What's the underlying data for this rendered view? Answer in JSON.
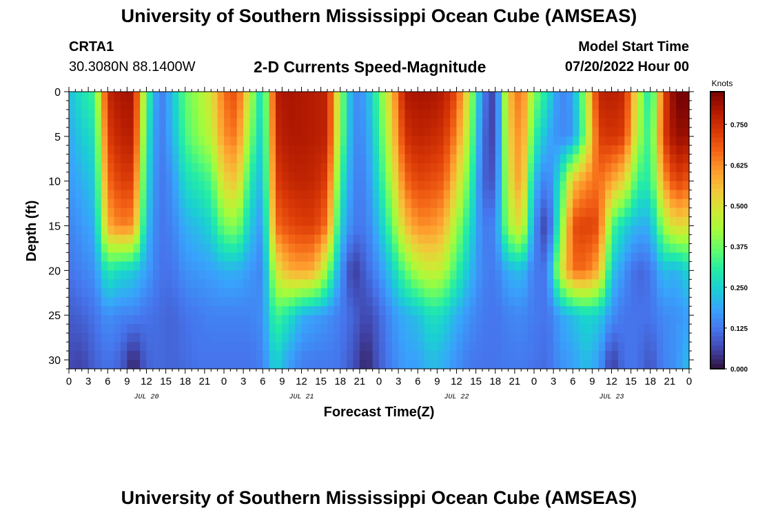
{
  "header": {
    "title": "University of Southern Mississippi Ocean Cube (AMSEAS)",
    "station": "CRTA1",
    "coordinates": "30.3080N  88.1400W",
    "subtitle": "2-D Currents Speed-Magnitude",
    "model_start_label": "Model Start Time",
    "model_start_value": "07/20/2022 Hour 00"
  },
  "footer": {
    "title": "University of Southern Mississippi Ocean Cube (AMSEAS)"
  },
  "chart_data": {
    "type": "heatmap",
    "title": "2-D Currents Speed-Magnitude",
    "xlabel": "Forecast Time(Z)",
    "ylabel": "Depth (ft)",
    "x_range_hours": [
      0,
      96
    ],
    "y_range_ft": [
      0,
      31
    ],
    "y_inverted": true,
    "x_tick_labels": [
      "0",
      "3",
      "6",
      "9",
      "12",
      "15",
      "18",
      "21",
      "0",
      "3",
      "6",
      "9",
      "12",
      "15",
      "18",
      "21",
      "0",
      "3",
      "6",
      "9",
      "12",
      "15",
      "18",
      "21",
      "0",
      "3",
      "6",
      "9",
      "12",
      "15",
      "18",
      "21",
      "0"
    ],
    "x_tick_hours": [
      0,
      3,
      6,
      9,
      12,
      15,
      18,
      21,
      24,
      27,
      30,
      33,
      36,
      39,
      42,
      45,
      48,
      51,
      54,
      57,
      60,
      63,
      66,
      69,
      72,
      75,
      78,
      81,
      84,
      87,
      90,
      93,
      96
    ],
    "date_labels": [
      {
        "text": "JUL 20",
        "hour": 12
      },
      {
        "text": "JUL 21",
        "hour": 36
      },
      {
        "text": "JUL 22",
        "hour": 60
      },
      {
        "text": "JUL 23",
        "hour": 84
      }
    ],
    "y_ticks": [
      0,
      5,
      10,
      15,
      20,
      25,
      30
    ],
    "colorbar": {
      "label": "Knots",
      "min": 0.0,
      "max": 0.85,
      "ticks": [
        "0.000",
        "0.125",
        "0.250",
        "0.375",
        "0.500",
        "0.625",
        "0.750"
      ],
      "tick_values": [
        0.0,
        0.125,
        0.25,
        0.375,
        0.5,
        0.625,
        0.75
      ],
      "colors": [
        "#30123b",
        "#4145ab",
        "#4675ed",
        "#39a2fc",
        "#1bcfd4",
        "#24eca6",
        "#61fc6c",
        "#a4fc3b",
        "#d1e834",
        "#f3c63a",
        "#fe9b2d",
        "#f36315",
        "#d93806",
        "#b11901",
        "#7a0403"
      ]
    },
    "speed_field_knots": {
      "depth_rows_ft": [
        0,
        5,
        10,
        15,
        20,
        25,
        30
      ],
      "column_hours": [
        0,
        2,
        4,
        6,
        8,
        10,
        12,
        14,
        16,
        18,
        20,
        22,
        24,
        26,
        28,
        30,
        32,
        34,
        36,
        38,
        40,
        42,
        44,
        46,
        48,
        50,
        52,
        54,
        56,
        58,
        60,
        62,
        64,
        66,
        68,
        70,
        72,
        74,
        76,
        78,
        80,
        82,
        84,
        86,
        88,
        90,
        92,
        94,
        96
      ],
      "rows": [
        [
          0.22,
          0.28,
          0.33,
          0.76,
          0.8,
          0.8,
          0.35,
          0.12,
          0.22,
          0.37,
          0.42,
          0.5,
          0.66,
          0.7,
          0.46,
          0.24,
          0.78,
          0.8,
          0.79,
          0.78,
          0.77,
          0.42,
          0.15,
          0.18,
          0.36,
          0.56,
          0.79,
          0.8,
          0.8,
          0.78,
          0.7,
          0.46,
          0.14,
          0.04,
          0.55,
          0.67,
          0.4,
          0.28,
          0.14,
          0.18,
          0.43,
          0.77,
          0.78,
          0.76,
          0.48,
          0.26,
          0.7,
          0.86,
          0.86
        ],
        [
          0.19,
          0.24,
          0.28,
          0.72,
          0.77,
          0.78,
          0.3,
          0.12,
          0.2,
          0.34,
          0.4,
          0.46,
          0.62,
          0.65,
          0.4,
          0.22,
          0.76,
          0.79,
          0.79,
          0.78,
          0.77,
          0.4,
          0.15,
          0.16,
          0.32,
          0.52,
          0.74,
          0.77,
          0.76,
          0.74,
          0.63,
          0.42,
          0.11,
          0.05,
          0.52,
          0.64,
          0.33,
          0.2,
          0.15,
          0.16,
          0.4,
          0.72,
          0.74,
          0.72,
          0.44,
          0.3,
          0.72,
          0.82,
          0.81
        ],
        [
          0.17,
          0.2,
          0.24,
          0.66,
          0.72,
          0.72,
          0.26,
          0.12,
          0.16,
          0.27,
          0.3,
          0.34,
          0.52,
          0.55,
          0.3,
          0.2,
          0.72,
          0.76,
          0.77,
          0.76,
          0.72,
          0.32,
          0.14,
          0.14,
          0.28,
          0.45,
          0.66,
          0.71,
          0.7,
          0.68,
          0.53,
          0.35,
          0.1,
          0.08,
          0.48,
          0.62,
          0.22,
          0.12,
          0.28,
          0.55,
          0.62,
          0.66,
          0.6,
          0.52,
          0.32,
          0.3,
          0.6,
          0.72,
          0.68
        ],
        [
          0.14,
          0.17,
          0.2,
          0.58,
          0.64,
          0.62,
          0.22,
          0.12,
          0.14,
          0.2,
          0.22,
          0.26,
          0.38,
          0.4,
          0.24,
          0.16,
          0.66,
          0.7,
          0.72,
          0.72,
          0.65,
          0.25,
          0.13,
          0.13,
          0.22,
          0.36,
          0.55,
          0.62,
          0.62,
          0.58,
          0.42,
          0.28,
          0.13,
          0.14,
          0.42,
          0.52,
          0.16,
          0.04,
          0.34,
          0.7,
          0.72,
          0.7,
          0.35,
          0.25,
          0.2,
          0.2,
          0.42,
          0.52,
          0.5
        ],
        [
          0.12,
          0.14,
          0.16,
          0.3,
          0.26,
          0.24,
          0.18,
          0.12,
          0.12,
          0.16,
          0.17,
          0.18,
          0.2,
          0.2,
          0.17,
          0.14,
          0.48,
          0.58,
          0.6,
          0.58,
          0.4,
          0.17,
          0.04,
          0.1,
          0.16,
          0.24,
          0.36,
          0.44,
          0.48,
          0.45,
          0.32,
          0.22,
          0.14,
          0.13,
          0.2,
          0.22,
          0.13,
          0.12,
          0.46,
          0.66,
          0.66,
          0.58,
          0.24,
          0.16,
          0.1,
          0.12,
          0.22,
          0.2,
          0.26
        ],
        [
          0.09,
          0.1,
          0.12,
          0.16,
          0.14,
          0.14,
          0.12,
          0.11,
          0.1,
          0.12,
          0.13,
          0.14,
          0.14,
          0.14,
          0.14,
          0.16,
          0.34,
          0.28,
          0.2,
          0.18,
          0.16,
          0.13,
          0.1,
          0.06,
          0.1,
          0.16,
          0.2,
          0.22,
          0.28,
          0.26,
          0.2,
          0.16,
          0.13,
          0.12,
          0.14,
          0.15,
          0.13,
          0.12,
          0.18,
          0.22,
          0.26,
          0.24,
          0.16,
          0.12,
          0.12,
          0.12,
          0.15,
          0.16,
          0.18
        ],
        [
          0.07,
          0.06,
          0.1,
          0.12,
          0.1,
          0.02,
          0.1,
          0.11,
          0.1,
          0.11,
          0.12,
          0.12,
          0.12,
          0.12,
          0.12,
          0.14,
          0.26,
          0.18,
          0.14,
          0.13,
          0.13,
          0.12,
          0.08,
          0.02,
          0.09,
          0.14,
          0.18,
          0.18,
          0.22,
          0.2,
          0.16,
          0.13,
          0.12,
          0.12,
          0.13,
          0.13,
          0.12,
          0.11,
          0.16,
          0.18,
          0.22,
          0.18,
          0.05,
          0.12,
          0.12,
          0.08,
          0.14,
          0.16,
          0.22
        ]
      ]
    }
  }
}
